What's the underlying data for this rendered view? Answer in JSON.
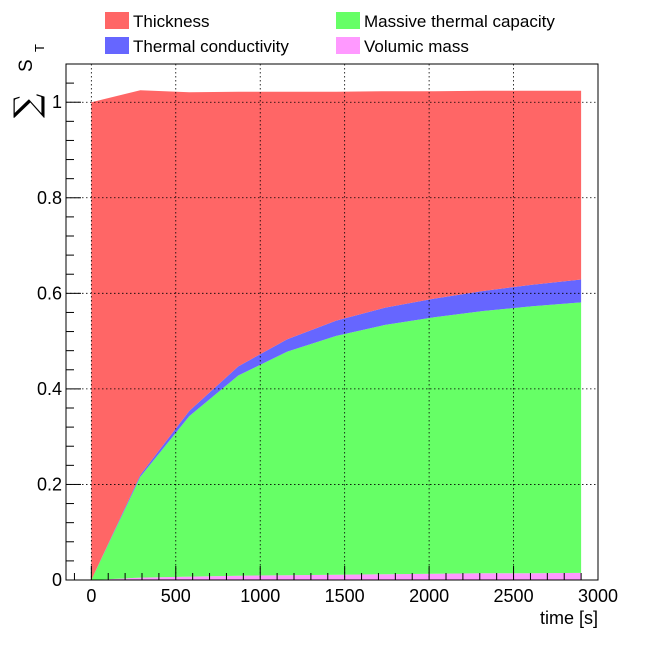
{
  "chart_data": {
    "type": "area",
    "stacked": true,
    "title": "",
    "xlabel": "time [s]",
    "ylabel": "S",
    "ylabel_prefix": "∑",
    "ylabel_subscript": "T",
    "xlim": [
      -150,
      3000
    ],
    "ylim": [
      0,
      1.08
    ],
    "x_ticks": [
      0,
      500,
      1000,
      1500,
      2000,
      2500,
      3000
    ],
    "x_tick_labels": [
      "0",
      "500",
      "1000",
      "1500",
      "2000",
      "2500",
      "3000"
    ],
    "y_ticks": [
      0,
      0.2,
      0.4,
      0.6,
      0.8,
      1
    ],
    "y_tick_labels": [
      "0",
      "0.2",
      "0.4",
      "0.6",
      "0.8",
      "1"
    ],
    "grid": true,
    "legend_position": "top",
    "x": [
      0,
      290,
      580,
      870,
      1160,
      1450,
      1740,
      2030,
      2320,
      2610,
      2900
    ],
    "series": [
      {
        "name": "Volumic mass",
        "color": "#ff99ff",
        "values": [
          0,
          0.005,
          0.007,
          0.009,
          0.01,
          0.011,
          0.012,
          0.013,
          0.014,
          0.014,
          0.015
        ]
      },
      {
        "name": "Massive thermal capacity",
        "color": "#66ff66",
        "values": [
          0,
          0.211,
          0.336,
          0.419,
          0.468,
          0.5,
          0.522,
          0.537,
          0.549,
          0.559,
          0.566
        ]
      },
      {
        "name": "Thermal conductivity",
        "color": "#6666ff",
        "values": [
          0,
          0.004,
          0.011,
          0.019,
          0.026,
          0.032,
          0.036,
          0.039,
          0.042,
          0.045,
          0.048
        ]
      },
      {
        "name": "Thickness",
        "color": "#ff6666",
        "values": [
          1.0,
          0.805,
          0.667,
          0.575,
          0.518,
          0.479,
          0.453,
          0.434,
          0.419,
          0.406,
          0.395
        ]
      }
    ],
    "legend_order": [
      "Thickness",
      "Massive thermal capacity",
      "Thermal conductivity",
      "Volumic mass"
    ]
  }
}
